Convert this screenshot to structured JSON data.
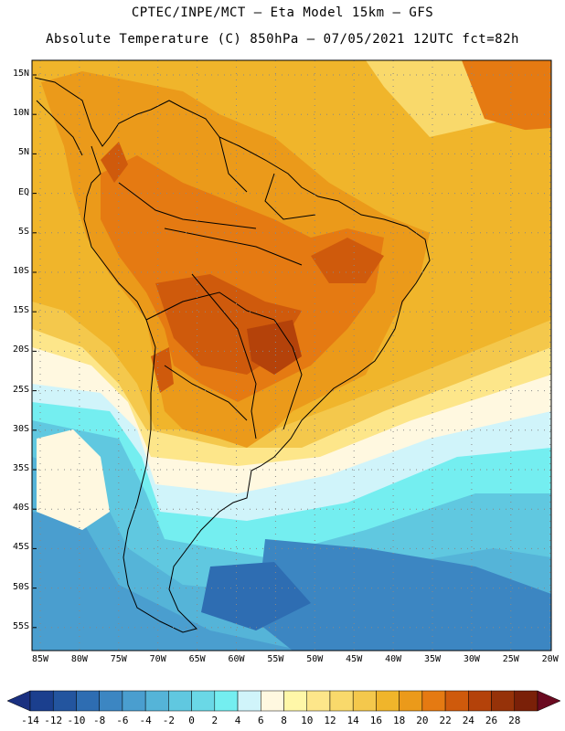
{
  "header": {
    "line1": "CPTEC/INPE/MCT –  Eta Model 15km – GFS",
    "line2": "Absolute Temperature (C) 850hPa – 07/05/2021 12UTC fct=82h"
  },
  "latitude_labels": [
    "15N",
    "10N",
    "5N",
    "EQ",
    "5S",
    "10S",
    "15S",
    "20S",
    "25S",
    "30S",
    "35S",
    "40S",
    "45S",
    "50S",
    "55S"
  ],
  "longitude_labels": [
    "85W",
    "80W",
    "75W",
    "70W",
    "65W",
    "60W",
    "55W",
    "50W",
    "45W",
    "40W",
    "35W",
    "30W",
    "25W",
    "20W"
  ],
  "colorbar": {
    "labels": [
      "-14",
      "-12",
      "-10",
      "-8",
      "-6",
      "-4",
      "-2",
      "0",
      "2",
      "4",
      "6",
      "8",
      "10",
      "12",
      "14",
      "16",
      "18",
      "20",
      "22",
      "24",
      "26",
      "28"
    ],
    "colors": [
      "#1b3f8e",
      "#23559f",
      "#2e6db2",
      "#3c86c2",
      "#4a9ecf",
      "#55b4d8",
      "#60c8e0",
      "#6ad8e6",
      "#74eef0",
      "#d0f4fa",
      "#fff8e0",
      "#fff7a8",
      "#fde68a",
      "#f9d96b",
      "#f4c84c",
      "#f0b52b",
      "#eb9a1a",
      "#e57a12",
      "#cf5a0c",
      "#b4420a",
      "#963209",
      "#7a2008"
    ]
  },
  "colors": {
    "land_border": "#000000",
    "grid_dots": "#888888"
  }
}
